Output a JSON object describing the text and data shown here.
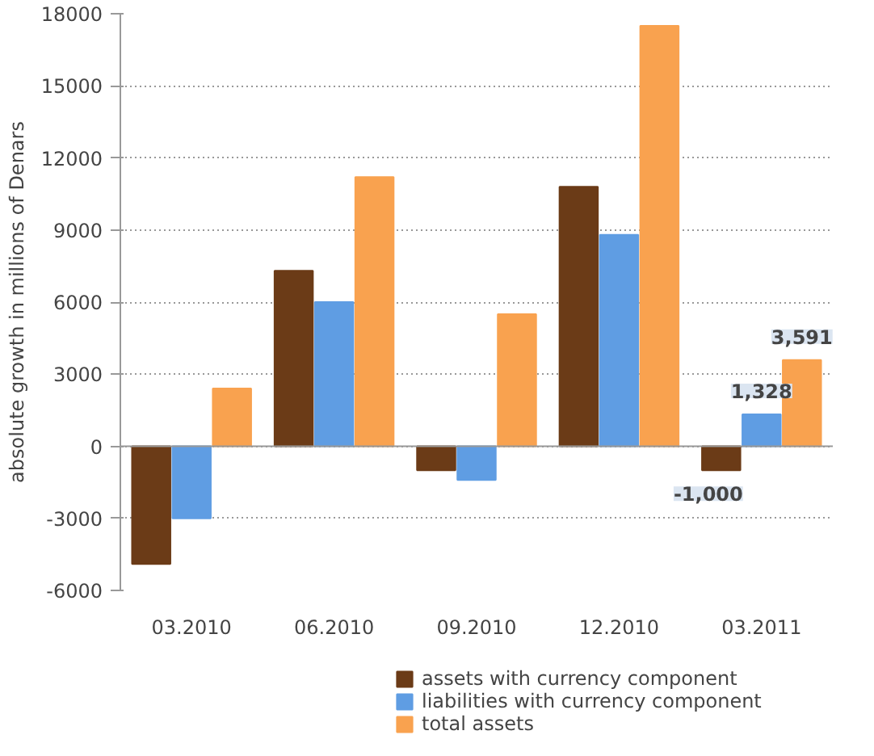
{
  "chart_data": {
    "type": "bar",
    "ylabel": "absolute growth in millions of Denars",
    "categories": [
      "03.2010",
      "06.2010",
      "09.2010",
      "12.2010",
      "03.2011"
    ],
    "series": [
      {
        "name": "assets with currency component",
        "color": "#6b3b17",
        "values": [
          -4900,
          7300,
          -1000,
          10800,
          -1000
        ],
        "value_labels": [
          null,
          null,
          null,
          null,
          "-1,000"
        ]
      },
      {
        "name": "liabilities with currency component",
        "color": "#5f9de3",
        "values": [
          -3000,
          6000,
          -1400,
          8800,
          1328
        ],
        "value_labels": [
          null,
          null,
          null,
          null,
          "1,328"
        ]
      },
      {
        "name": "total assets",
        "color": "#f9a24f",
        "values": [
          2400,
          11200,
          5500,
          17500,
          3591
        ],
        "value_labels": [
          null,
          null,
          null,
          null,
          "3,591"
        ]
      }
    ],
    "ylim": [
      -6000,
      18000
    ],
    "yticks": [
      -6000,
      -3000,
      0,
      3000,
      6000,
      9000,
      12000,
      15000,
      18000
    ],
    "grid": "y",
    "legend": "bottom"
  }
}
